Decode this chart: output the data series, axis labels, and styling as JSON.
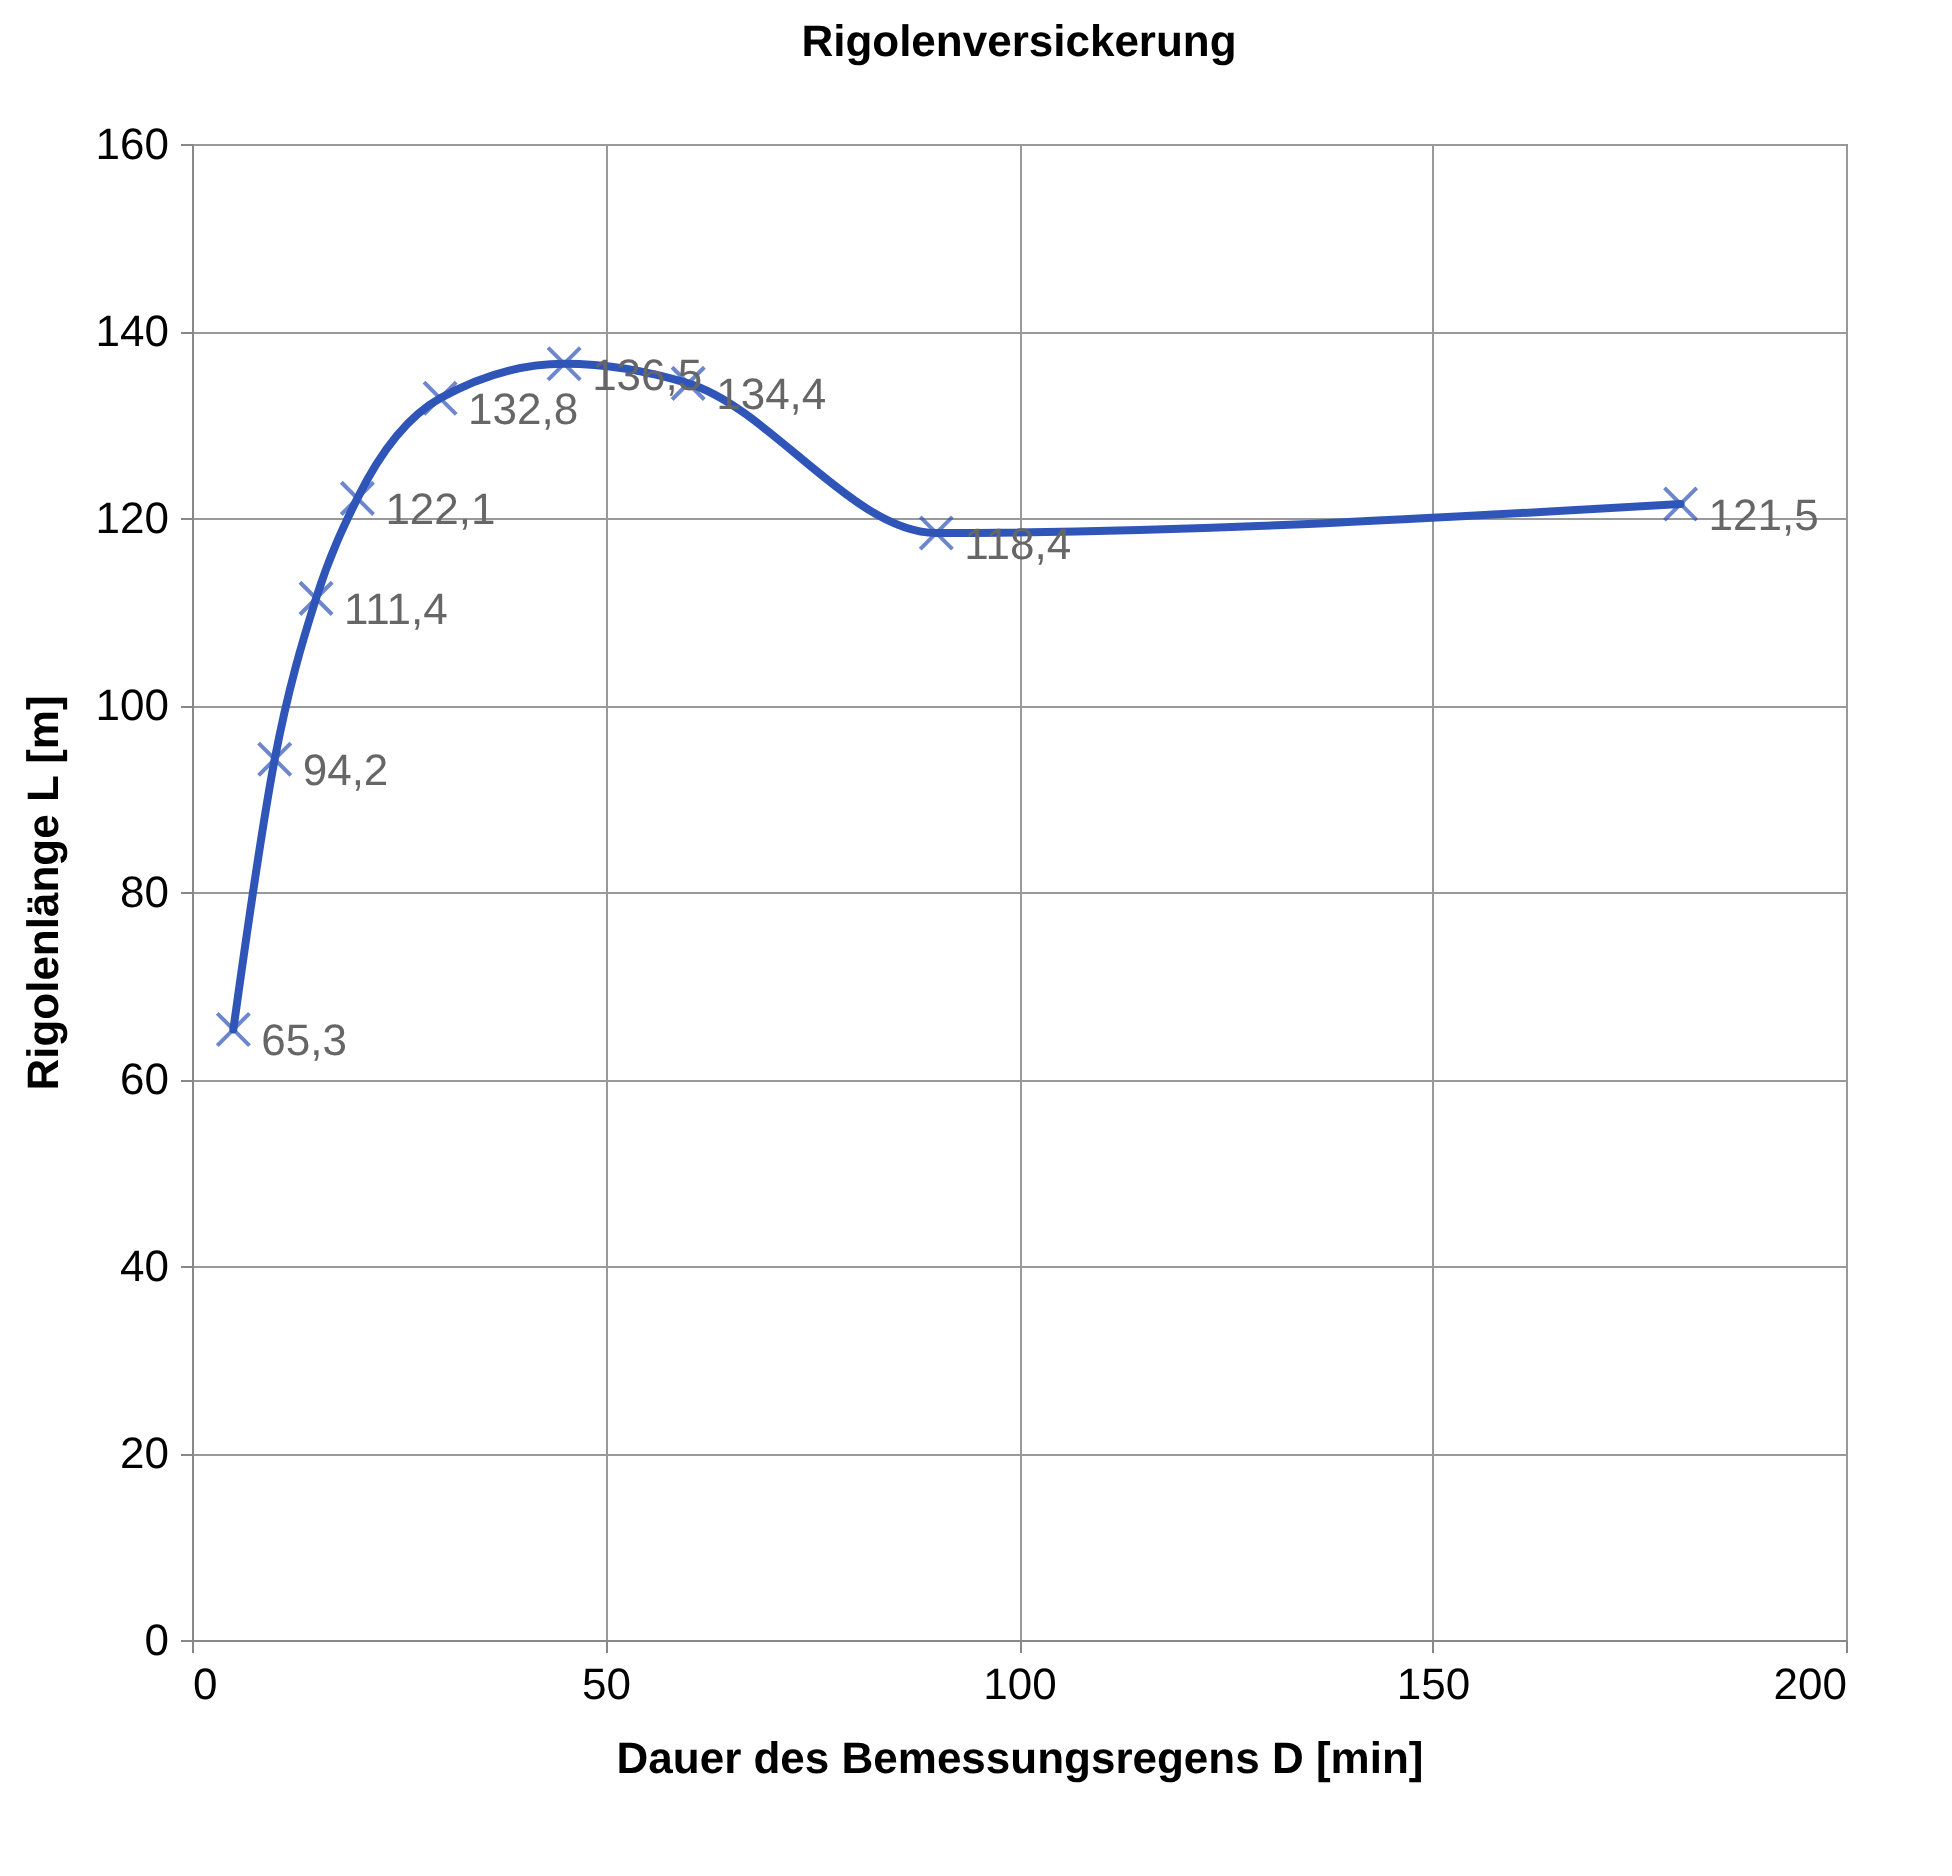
{
  "chart_data": {
    "type": "line",
    "title": "Rigolenversickerung",
    "xlabel": "Dauer des Bemessungsregens  D [min]",
    "ylabel": "Rigolenlänge L [m]",
    "x": [
      5,
      10,
      15,
      20,
      30,
      45,
      60,
      90,
      180
    ],
    "series": [
      {
        "color": "#2f55b8",
        "values": [
          65.3,
          94.2,
          111.4,
          122.1,
          132.8,
          136.5,
          134.4,
          118.4,
          121.5
        ],
        "value_labels": [
          "65,3",
          "94,2",
          "111,4",
          "122,1",
          "132,8",
          "136,5",
          "134,4",
          "118,4",
          "121,5"
        ]
      }
    ],
    "xlim": [
      0,
      200
    ],
    "xticks": [
      0,
      50,
      100,
      150,
      200
    ],
    "ylim": [
      0,
      160
    ],
    "yticks": [
      0,
      20,
      40,
      60,
      80,
      100,
      120,
      140,
      160
    ],
    "grid": true,
    "marker": "cross",
    "line_style": "solid"
  }
}
